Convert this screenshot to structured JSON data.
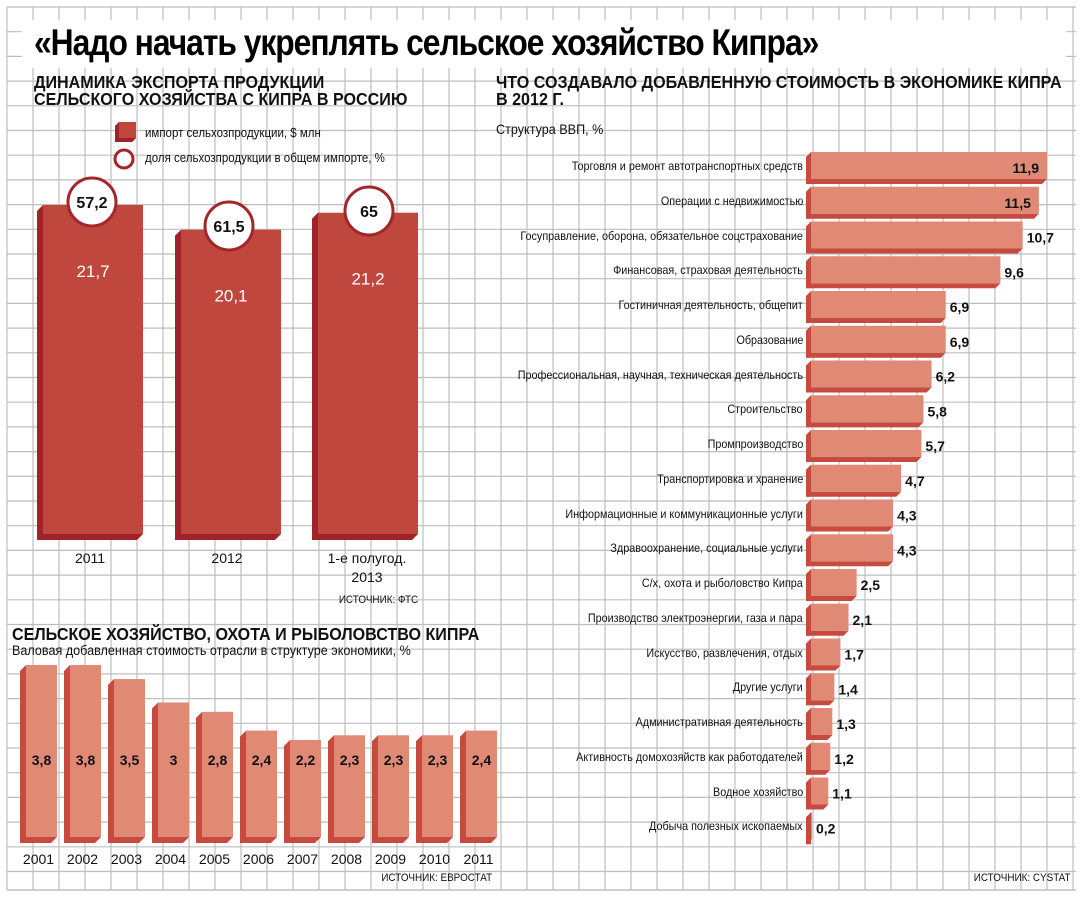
{
  "header": {
    "title": "«Надо начать укреплять сельское хозяйство Кипра»"
  },
  "colors": {
    "bar_dark": "#c0473d",
    "bar_shadow": "#9e2228",
    "bar_light": "#e08a76",
    "bar_light_shadow": "#c74a3e",
    "circle_stroke": "#a3262a",
    "grid": "#bdbdbd"
  },
  "chart_data": [
    {
      "type": "bar",
      "title": "ДИНАМИКА ЭКСПОРТА ПРОДУКЦИИ СЕЛЬСКОГО ХОЗЯЙСТВА С КИПРА В РОССИЮ",
      "title_lines": [
        "ДИНАМИКА ЭКСПОРТА ПРОДУКЦИИ",
        "СЕЛЬСКОГО ХОЗЯЙСТВА С КИПРА В РОССИЮ"
      ],
      "legend": [
        {
          "icon": "bar-icon",
          "label": "импорт сельхозпродукции, $ млн"
        },
        {
          "icon": "circle-icon",
          "label": "доля сельхозпродукции в общем импорте, %"
        }
      ],
      "legend_placement": "top",
      "categories": [
        "2011",
        "2012",
        "1-е полугод. 2013"
      ],
      "category_lines": [
        [
          "2011"
        ],
        [
          "2012"
        ],
        [
          "1-е полугод.",
          "2013"
        ]
      ],
      "series": [
        {
          "name": "импорт сельхозпродукции, $ млн",
          "values": [
            21.7,
            20.1,
            21.2
          ],
          "labels": [
            "21,7",
            "20,1",
            "21,2"
          ]
        },
        {
          "name": "доля сельхозпродукции в общем импорте, %",
          "values": [
            57.2,
            61.5,
            65
          ],
          "labels": [
            "57,2",
            "61,5",
            "65"
          ]
        }
      ],
      "source": "ИСТОЧНИК: ФТС",
      "grid": true
    },
    {
      "type": "bar",
      "title": "СЕЛЬСКОЕ ХОЗЯЙСТВО, ОХОТА И РЫБОЛОВСТВО КИПРА",
      "subtitle": "Валовая добавленная стоимость отрасли в структуре экономики, %",
      "categories": [
        "2001",
        "2002",
        "2003",
        "2004",
        "2005",
        "2006",
        "2007",
        "2008",
        "2009",
        "2010",
        "2011"
      ],
      "values": [
        3.8,
        3.8,
        3.5,
        3,
        2.8,
        2.4,
        2.2,
        2.3,
        2.3,
        2.3,
        2.4
      ],
      "labels": [
        "3,8",
        "3,8",
        "3,5",
        "3",
        "2,8",
        "2,4",
        "2,2",
        "2,3",
        "2,3",
        "2,3",
        "2,4"
      ],
      "ylim": [
        0,
        3.8
      ],
      "source": "ИСТОЧНИК: ЕВРОСТАТ",
      "grid": true
    },
    {
      "type": "bar",
      "orientation": "horizontal",
      "title": "ЧТО СОЗДАВАЛО ДОБАВЛЕННУЮ СТОИМОСТЬ В ЭКОНОМИКЕ КИПРА В 2012 Г.",
      "title_lines": [
        "ЧТО СОЗДАВАЛО ДОБАВЛЕННУЮ СТОИМОСТЬ В ЭКОНОМИКЕ КИПРА",
        "В 2012 Г."
      ],
      "subtitle": "Структура ВВП, %",
      "categories": [
        "Торговля и ремонт автотранспортных средств",
        "Операции с недвижимостью",
        "Госуправление, оборона, обязательное соцстрахование",
        "Финансовая, страховая деятельность",
        "Гостиничная деятельность, общепит",
        "Образование",
        "Профессиональная, научная, техническая деятельность",
        "Строительство",
        "Промпроизводство",
        "Транспортировка и хранение",
        "Информационные и коммуникационные услуги",
        "Здравоохранение, социальные услуги",
        "С/х, охота и рыболовство Кипра",
        "Производство электроэнергии, газа и пара",
        "Искусство, развлечения, отдых",
        "Другие услуги",
        "Административная деятельность",
        "Активность домохозяйств как работодателей",
        "Водное хозяйство",
        "Добыча полезных ископаемых"
      ],
      "values": [
        11.9,
        11.5,
        10.7,
        9.6,
        6.9,
        6.9,
        6.2,
        5.8,
        5.7,
        4.7,
        4.3,
        4.3,
        2.5,
        2.1,
        1.7,
        1.4,
        1.3,
        1.2,
        1.1,
        0.2
      ],
      "labels": [
        "11,9",
        "11,5",
        "10,7",
        "9,6",
        "6,9",
        "6,9",
        "6,2",
        "5,8",
        "5,7",
        "4,7",
        "4,3",
        "4,3",
        "2,5",
        "2,1",
        "1,7",
        "1,4",
        "1,3",
        "1,2",
        "1,1",
        "0,2"
      ],
      "xlim": [
        0,
        11.9
      ],
      "source": "ИСТОЧНИК: CYSTAT",
      "grid": true
    }
  ]
}
